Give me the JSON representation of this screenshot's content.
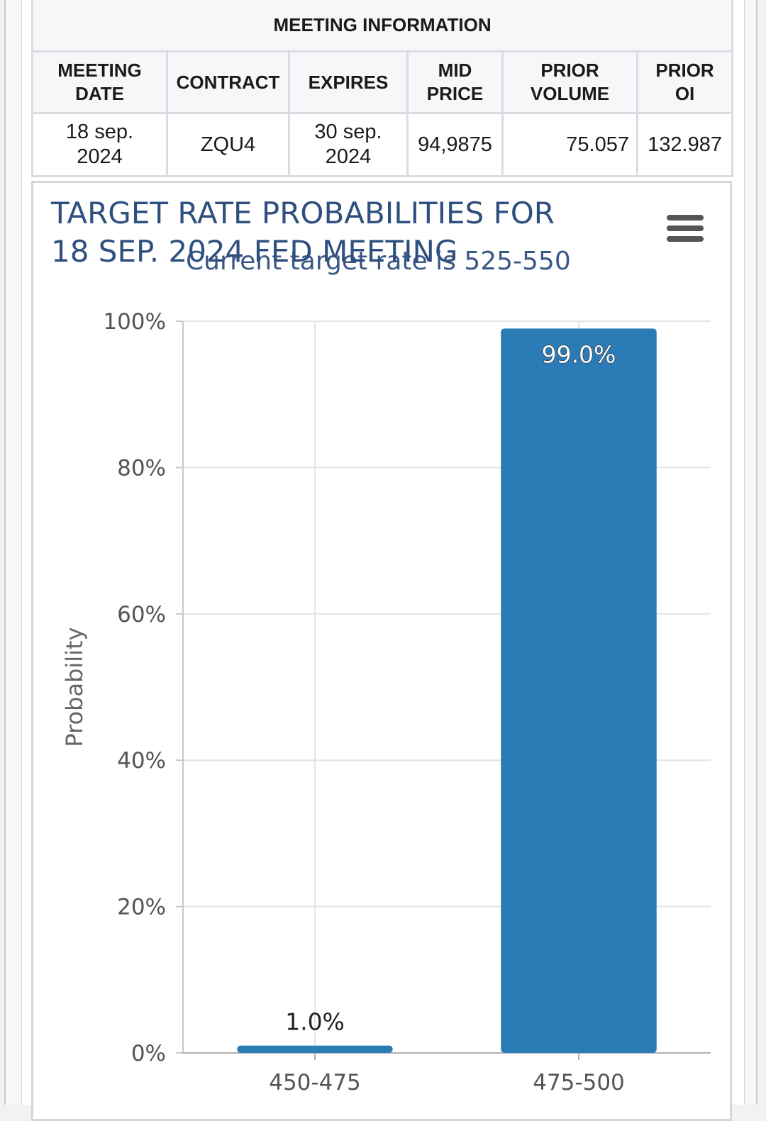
{
  "meeting_info": {
    "caption": "MEETING INFORMATION",
    "headers": [
      "MEETING\nDATE",
      "CONTRACT",
      "EXPIRES",
      "MID\nPRICE",
      "PRIOR\nVOLUME",
      "PRIOR\nOI"
    ],
    "row": {
      "meeting_date": "18 sep.\n2024",
      "contract": "ZQU4",
      "expires": "30 sep.\n2024",
      "mid_price": "94,9875",
      "prior_volume": "75.057",
      "prior_oi": "132.987"
    }
  },
  "chart_menu_icon": "hamburger-menu-icon",
  "chart_data": {
    "type": "bar",
    "title": "TARGET RATE PROBABILITIES FOR 18 SEP. 2024 FED MEETING",
    "title_lines": [
      "TARGET RATE PROBABILITIES FOR",
      "18 SEP. 2024 FED MEETING"
    ],
    "subtitle": "Current target rate is 525-550",
    "ylabel": "Probability",
    "xlabel": "",
    "categories": [
      "450-475",
      "475-500"
    ],
    "values": [
      1.0,
      99.0
    ],
    "data_labels": [
      "1.0%",
      "99.0%"
    ],
    "ylim": [
      0,
      100
    ],
    "yticks": [
      0,
      20,
      40,
      60,
      80,
      100
    ],
    "ytick_labels": [
      "0%",
      "20%",
      "40%",
      "60%",
      "80%",
      "100%"
    ],
    "grid": true,
    "colors": {
      "bar": "#2b7bb6",
      "title": "#2f4f7f",
      "axis_text": "#555555",
      "grid": "#e4e4e4"
    }
  }
}
